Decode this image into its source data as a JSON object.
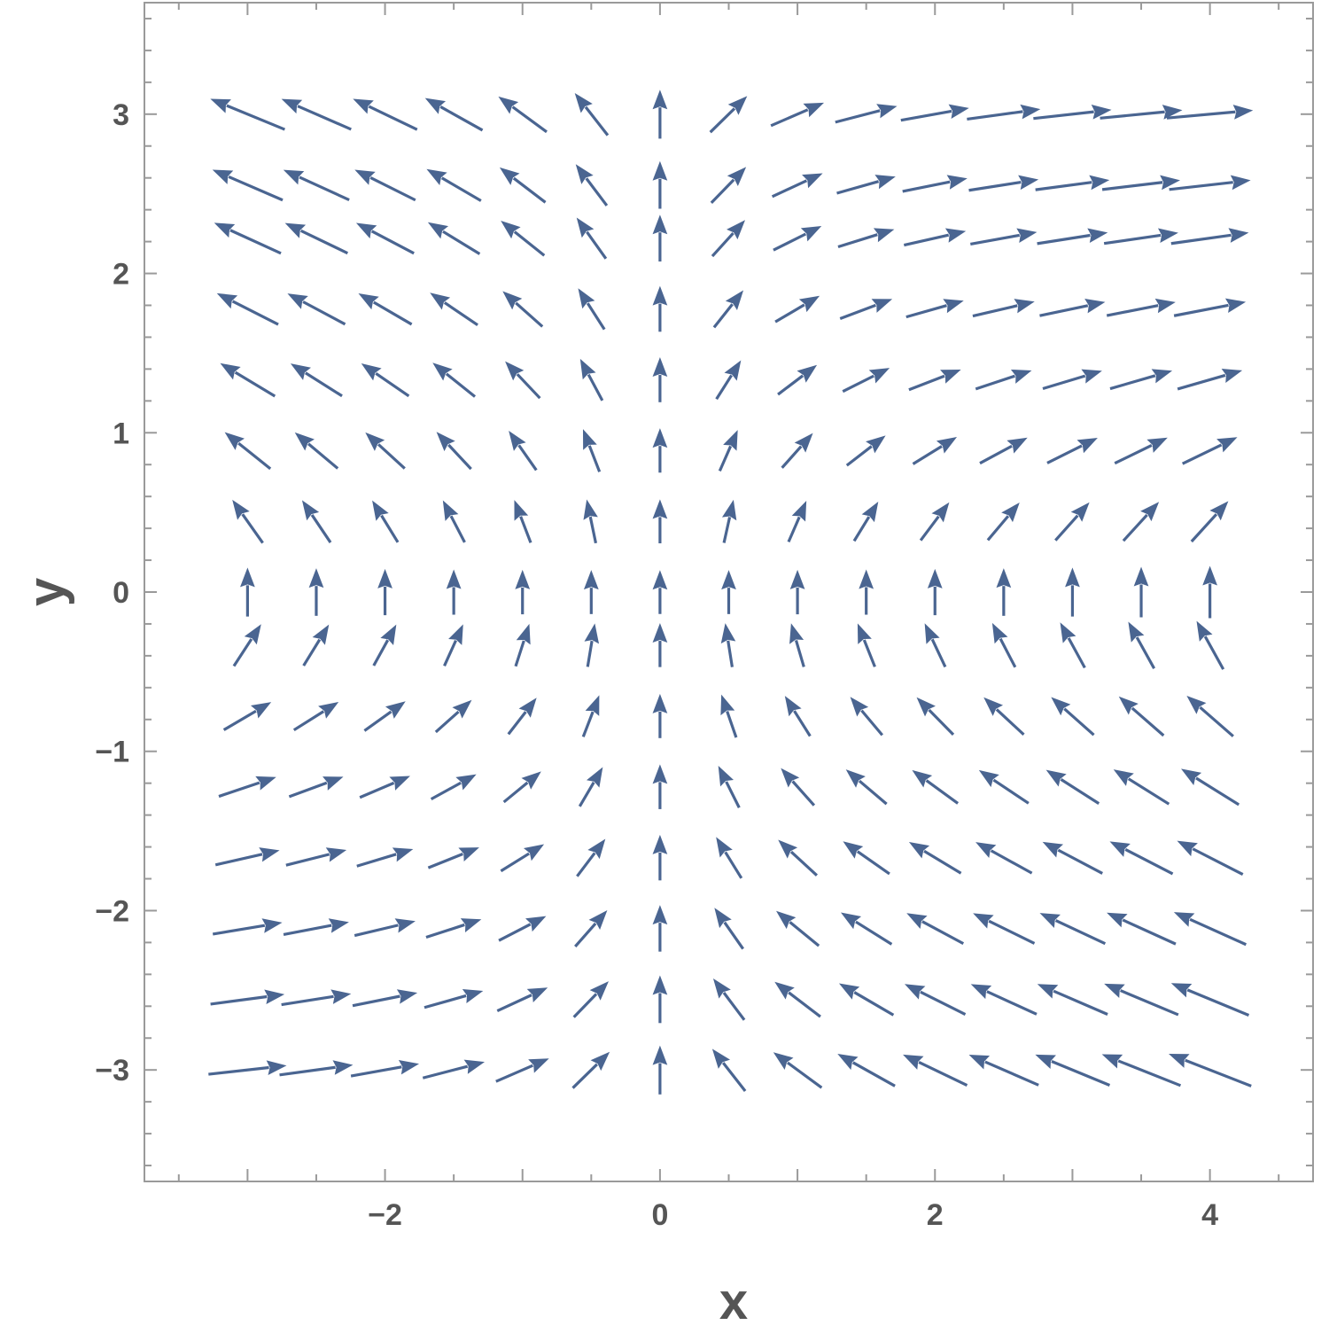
{
  "chart_data": {
    "type": "vector-field",
    "title": "",
    "xlabel": "x",
    "ylabel": "y",
    "xlim": [
      -3.75,
      4.75
    ],
    "ylim": [
      -3.7,
      3.7
    ],
    "xticks": [
      -2,
      0,
      2,
      4
    ],
    "xtick_labels": [
      "−2",
      "0",
      "2",
      "4"
    ],
    "yticks": [
      -3,
      -2,
      -1,
      0,
      1,
      2,
      3
    ],
    "ytick_labels": [
      "−3",
      "−2",
      "−1",
      "0",
      "1",
      "2",
      "3"
    ],
    "grid": false,
    "legend": "none",
    "field": {
      "u": "x*y",
      "v": "1 + 0.075*(x - y)^2"
    },
    "sample_x": [
      -3,
      -2.5,
      -2,
      -1.5,
      -1,
      -0.5,
      0,
      0.5,
      1,
      1.5,
      2,
      2.5,
      3,
      3.5,
      4
    ],
    "sample_y": [
      -3,
      -2.556,
      -2.111,
      -1.667,
      -1.222,
      -0.778,
      -0.333,
      0,
      0.444,
      0.889,
      1.333,
      1.778,
      2.222,
      2.556,
      3
    ],
    "arrow_color": "#4a6591"
  }
}
